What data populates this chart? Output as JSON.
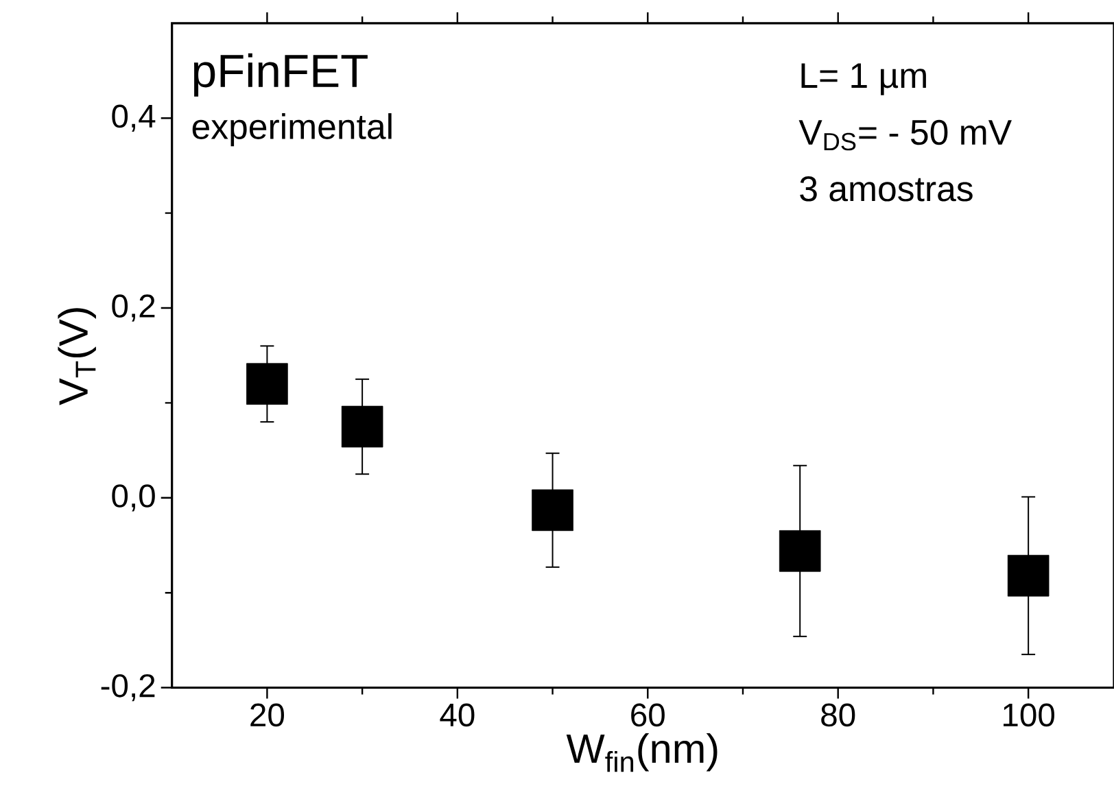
{
  "chart_data": {
    "type": "scatter",
    "xlabel": "W$_{fin}$(nm)",
    "ylabel": "V$_{T}$(V)",
    "annotations": [
      "pFinFET",
      "experimental",
      "L= 1 µm",
      "V$_{DS}$= - 50 mV",
      "3 amostras"
    ],
    "x": [
      20,
      30,
      50,
      76,
      100
    ],
    "series": [
      {
        "color": "#000000",
        "values": [
          0.12,
          0.075,
          -0.013,
          -0.056,
          -0.082
        ],
        "errors": [
          0.04,
          0.05,
          0.06,
          0.09,
          0.083
        ]
      }
    ],
    "marker": "square",
    "grid": false,
    "xlim": [
      10,
      109
    ],
    "xticks": [
      20,
      40,
      60,
      80,
      100
    ],
    "ylim": [
      -0.2,
      0.5
    ],
    "yticks": [
      {
        "value": -0.2,
        "label": "-0,2"
      },
      {
        "value": 0.0,
        "label": "0,0"
      },
      {
        "value": 0.2,
        "label": "0,2"
      },
      {
        "value": 0.4,
        "label": "0,4"
      }
    ]
  }
}
